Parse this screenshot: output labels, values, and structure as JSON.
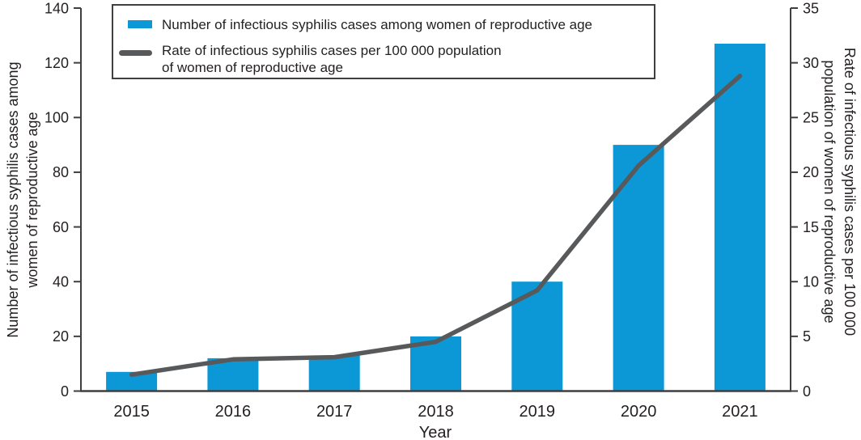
{
  "chart_data": {
    "type": "bar+line",
    "categories": [
      "2015",
      "2016",
      "2017",
      "2018",
      "2019",
      "2020",
      "2021"
    ],
    "series": [
      {
        "name": "Number of infectious syphilis cases among women of reproductive age",
        "type": "bar",
        "axis": "left",
        "color": "#0c98d6",
        "values": [
          7,
          12,
          13,
          20,
          40,
          90,
          127
        ]
      },
      {
        "name": "Rate of infectious syphilis cases per 100 000 population of women of reproductive age",
        "type": "line",
        "axis": "right",
        "color": "#58595b",
        "values": [
          1.5,
          2.9,
          3.1,
          4.5,
          9.2,
          20.6,
          28.8
        ]
      }
    ],
    "xlabel": "Year",
    "left_axis": {
      "title_lines": [
        "Number of infectious syphilis cases among",
        "women of reproductive age"
      ],
      "ticks": [
        0,
        20,
        40,
        60,
        80,
        100,
        120,
        140
      ],
      "min": 0,
      "max": 140
    },
    "right_axis": {
      "title_lines": [
        "Rate of infectious syphilis cases per 100 000",
        "population of women of reproductive age"
      ],
      "ticks": [
        0,
        5,
        10,
        15,
        20,
        25,
        30,
        35
      ],
      "min": 0,
      "max": 35
    },
    "legend": {
      "position": "top-left-inside",
      "items": [
        {
          "marker": "bar-swatch",
          "color": "#0c98d6",
          "lines": [
            "Number of infectious syphilis cases among women of reproductive age"
          ]
        },
        {
          "marker": "line-swatch",
          "color": "#58595b",
          "lines": [
            "Rate of infectious syphilis cases per 100 000 population",
            "of women of reproductive age"
          ]
        }
      ]
    },
    "grid": false
  },
  "colors": {
    "bar": "#0c98d6",
    "line": "#58595b",
    "axis": "#3f3f41",
    "text": "#231f20",
    "background": "#ffffff"
  }
}
